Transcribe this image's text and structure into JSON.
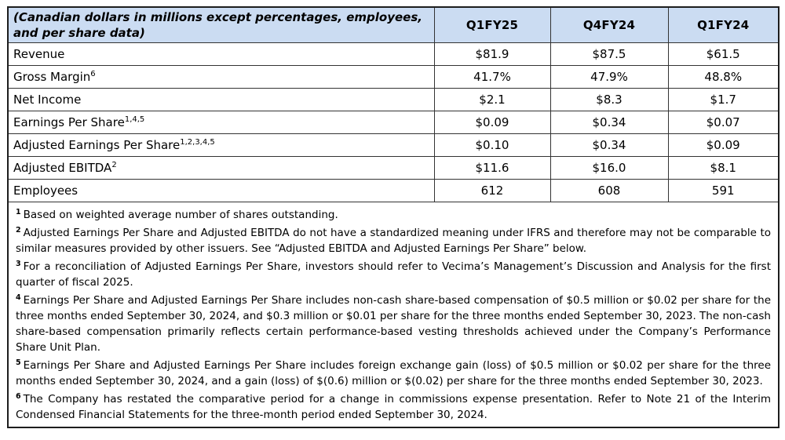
{
  "table": {
    "unit_note": "(Canadian dollars in millions except percentages, employees, and per share data)",
    "columns": [
      "Q1FY25",
      "Q4FY24",
      "Q1FY24"
    ],
    "rows": [
      {
        "label": "Revenue",
        "sup": "",
        "values": [
          "$81.9",
          "$87.5",
          "$61.5"
        ]
      },
      {
        "label": "Gross Margin",
        "sup": "6",
        "values": [
          "41.7%",
          "47.9%",
          "48.8%"
        ]
      },
      {
        "label": "Net Income",
        "sup": "",
        "values": [
          "$2.1",
          "$8.3",
          "$1.7"
        ]
      },
      {
        "label": "Earnings Per Share",
        "sup": "1,4,5",
        "values": [
          "$0.09",
          "$0.34",
          "$0.07"
        ]
      },
      {
        "label": "Adjusted Earnings Per Share",
        "sup": "1,2,3,4,5",
        "values": [
          "$0.10",
          "$0.34",
          "$0.09"
        ]
      },
      {
        "label": "Adjusted EBITDA",
        "sup": "2",
        "values": [
          "$11.6",
          "$16.0",
          "$8.1"
        ]
      },
      {
        "label": "Employees",
        "sup": "",
        "values": [
          "612",
          "608",
          "591"
        ]
      }
    ]
  },
  "footnotes": [
    {
      "marker": "1",
      "text": "Based on weighted average number of shares outstanding."
    },
    {
      "marker": "2",
      "text": "Adjusted Earnings Per Share and Adjusted EBITDA do not have a standardized meaning under IFRS and therefore may not be comparable to similar measures provided by other issuers. See “Adjusted EBITDA and Adjusted Earnings Per Share” below."
    },
    {
      "marker": "3",
      "text": "For a reconciliation of Adjusted Earnings Per Share, investors should refer to Vecima’s Management’s Discussion and Analysis for the first quarter of fiscal 2025."
    },
    {
      "marker": "4",
      "text": "Earnings Per Share and Adjusted Earnings Per Share includes non-cash share-based compensation of $0.5 million or $0.02 per share for the three months ended September 30, 2024, and $0.3 million or $0.01 per share for the three months ended September 30, 2023. The non-cash share-based compensation primarily reflects certain performance-based vesting thresholds achieved under the Company’s Performance Share Unit Plan."
    },
    {
      "marker": "5",
      "text": "Earnings Per Share and Adjusted Earnings Per Share includes foreign exchange gain (loss) of $0.5 million or $0.02 per share for the three months ended September 30, 2024, and a gain (loss) of $(0.6) million or $(0.02) per share for the three months ended September 30, 2023."
    },
    {
      "marker": "6",
      "text": "The Company has restated the comparative period for a change in commissions expense presentation. Refer to Note 21 of the Interim Condensed Financial Statements for the three-month period ended September 30, 2024."
    }
  ],
  "colors": {
    "header_bg": "#CBDCF2",
    "border": "#333333",
    "text": "#000000"
  }
}
